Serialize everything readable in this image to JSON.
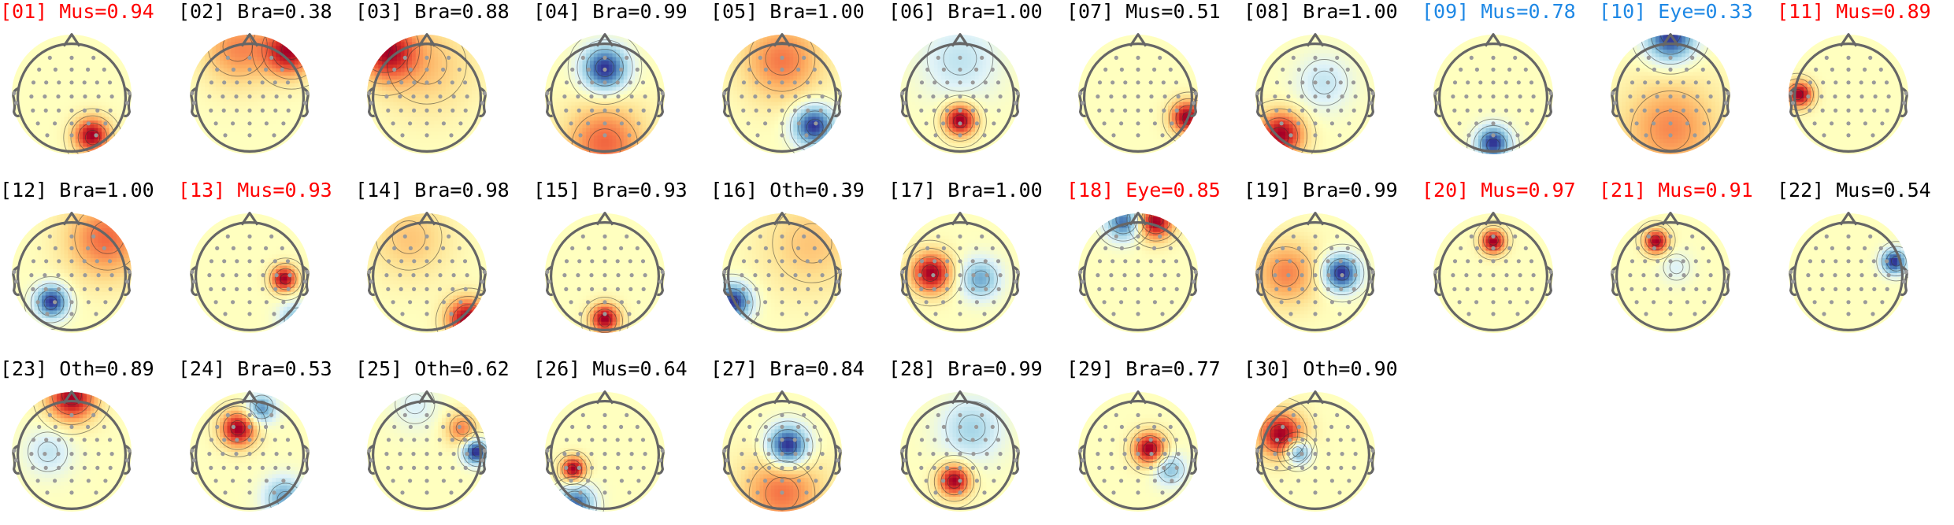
{
  "colors": {
    "normal_label": "#000000",
    "rejected_label": "#ff0000",
    "alternate_label": "#1e88e5",
    "head_outline": "#666666",
    "sensor": "#9a9a9a"
  },
  "chart_data": {
    "type": "topomap-grid",
    "columns": 11,
    "colormap": "RdYlBu_r",
    "components": [
      {
        "index": "01",
        "label": "Mus",
        "prob": "0.94",
        "status": "rejected",
        "blobs": [
          {
            "x": 0.35,
            "y": -0.72,
            "amp": 1.0,
            "s": 0.22
          }
        ]
      },
      {
        "index": "02",
        "label": "Bra",
        "prob": "0.38",
        "status": "normal",
        "blobs": [
          {
            "x": 0.7,
            "y": 0.75,
            "amp": 1.0,
            "s": 0.3
          },
          {
            "x": -0.2,
            "y": 0.8,
            "amp": 0.55,
            "s": 0.45
          }
        ]
      },
      {
        "index": "03",
        "label": "Bra",
        "prob": "0.88",
        "status": "normal",
        "blobs": [
          {
            "x": -0.7,
            "y": 0.75,
            "amp": 1.0,
            "s": 0.35
          },
          {
            "x": 0.0,
            "y": 0.5,
            "amp": 0.35,
            "s": 0.6
          }
        ]
      },
      {
        "index": "04",
        "label": "Bra",
        "prob": "0.99",
        "status": "normal",
        "blobs": [
          {
            "x": 0.0,
            "y": 0.45,
            "amp": -1.0,
            "s": 0.28
          },
          {
            "x": 0.0,
            "y": -0.85,
            "amp": 0.6,
            "s": 0.5
          }
        ]
      },
      {
        "index": "05",
        "label": "Bra",
        "prob": "1.00",
        "status": "normal",
        "blobs": [
          {
            "x": 0.55,
            "y": -0.55,
            "amp": -1.0,
            "s": 0.25
          },
          {
            "x": 0.0,
            "y": 0.6,
            "amp": 0.55,
            "s": 0.5
          }
        ]
      },
      {
        "index": "06",
        "label": "Bra",
        "prob": "1.00",
        "status": "normal",
        "blobs": [
          {
            "x": 0.0,
            "y": -0.45,
            "amp": 1.0,
            "s": 0.2
          },
          {
            "x": 0.0,
            "y": 0.6,
            "amp": -0.3,
            "s": 0.5
          }
        ]
      },
      {
        "index": "07",
        "label": "Mus",
        "prob": "0.51",
        "status": "normal",
        "blobs": [
          {
            "x": 0.85,
            "y": -0.4,
            "amp": 1.0,
            "s": 0.2
          }
        ]
      },
      {
        "index": "08",
        "label": "Bra",
        "prob": "1.00",
        "status": "normal",
        "blobs": [
          {
            "x": -0.6,
            "y": -0.7,
            "amp": 1.0,
            "s": 0.28
          },
          {
            "x": 0.15,
            "y": 0.2,
            "amp": -0.3,
            "s": 0.35
          }
        ]
      },
      {
        "index": "09",
        "label": "Mus",
        "prob": "0.78",
        "status": "alternate",
        "blobs": [
          {
            "x": 0.0,
            "y": -0.85,
            "amp": -1.0,
            "s": 0.2
          }
        ]
      },
      {
        "index": "10",
        "label": "Eye",
        "prob": "0.33",
        "status": "alternate",
        "blobs": [
          {
            "x": 0.0,
            "y": 1.0,
            "amp": -1.0,
            "s": 0.3
          },
          {
            "x": 0.0,
            "y": -0.6,
            "amp": 0.5,
            "s": 0.6
          }
        ]
      },
      {
        "index": "11",
        "label": "Mus",
        "prob": "0.89",
        "status": "rejected",
        "blobs": [
          {
            "x": -0.85,
            "y": 0.0,
            "amp": 1.0,
            "s": 0.16
          }
        ]
      },
      {
        "index": "12",
        "label": "Bra",
        "prob": "1.00",
        "status": "normal",
        "blobs": [
          {
            "x": -0.35,
            "y": -0.5,
            "amp": -1.0,
            "s": 0.2
          },
          {
            "x": 0.6,
            "y": 0.6,
            "amp": 0.6,
            "s": 0.5
          }
        ]
      },
      {
        "index": "13",
        "label": "Mus",
        "prob": "0.93",
        "status": "rejected",
        "blobs": [
          {
            "x": 0.6,
            "y": -0.1,
            "amp": 1.0,
            "s": 0.16
          },
          {
            "x": 0.8,
            "y": -0.8,
            "amp": -0.5,
            "s": 0.2
          }
        ]
      },
      {
        "index": "14",
        "label": "Bra",
        "prob": "0.98",
        "status": "normal",
        "blobs": [
          {
            "x": 0.7,
            "y": -0.8,
            "amp": 1.0,
            "s": 0.25
          },
          {
            "x": -0.3,
            "y": 0.6,
            "amp": 0.3,
            "s": 0.5
          }
        ]
      },
      {
        "index": "15",
        "label": "Bra",
        "prob": "0.93",
        "status": "normal",
        "blobs": [
          {
            "x": 0.0,
            "y": -0.8,
            "amp": 1.0,
            "s": 0.18
          }
        ]
      },
      {
        "index": "16",
        "label": "Oth",
        "prob": "0.39",
        "status": "normal",
        "blobs": [
          {
            "x": -0.85,
            "y": -0.5,
            "amp": -1.0,
            "s": 0.22
          },
          {
            "x": 0.5,
            "y": 0.5,
            "amp": 0.3,
            "s": 0.6
          }
        ]
      },
      {
        "index": "17",
        "label": "Bra",
        "prob": "1.00",
        "status": "normal",
        "blobs": [
          {
            "x": -0.5,
            "y": 0.0,
            "amp": 1.0,
            "s": 0.25
          },
          {
            "x": 0.35,
            "y": -0.1,
            "amp": -0.6,
            "s": 0.25
          }
        ]
      },
      {
        "index": "18",
        "label": "Eye",
        "prob": "0.85",
        "status": "rejected",
        "blobs": [
          {
            "x": 0.3,
            "y": 0.9,
            "amp": 1.0,
            "s": 0.22
          },
          {
            "x": -0.25,
            "y": 0.9,
            "amp": -0.8,
            "s": 0.22
          }
        ]
      },
      {
        "index": "19",
        "label": "Bra",
        "prob": "0.99",
        "status": "normal",
        "blobs": [
          {
            "x": 0.45,
            "y": 0.0,
            "amp": -1.0,
            "s": 0.22
          },
          {
            "x": -0.5,
            "y": 0.0,
            "amp": 0.5,
            "s": 0.4
          }
        ]
      },
      {
        "index": "20",
        "label": "Mus",
        "prob": "0.97",
        "status": "rejected",
        "blobs": [
          {
            "x": 0.0,
            "y": 0.55,
            "amp": 1.0,
            "s": 0.15
          }
        ]
      },
      {
        "index": "21",
        "label": "Mus",
        "prob": "0.91",
        "status": "rejected",
        "blobs": [
          {
            "x": -0.25,
            "y": 0.55,
            "amp": 1.0,
            "s": 0.15
          },
          {
            "x": 0.1,
            "y": 0.1,
            "amp": -0.2,
            "s": 0.2
          }
        ]
      },
      {
        "index": "22",
        "label": "Mus",
        "prob": "0.54",
        "status": "normal",
        "blobs": [
          {
            "x": 0.8,
            "y": 0.2,
            "amp": -1.0,
            "s": 0.15
          }
        ]
      },
      {
        "index": "23",
        "label": "Oth",
        "prob": "0.89",
        "status": "normal",
        "blobs": [
          {
            "x": 0.0,
            "y": 0.95,
            "amp": 1.0,
            "s": 0.3
          },
          {
            "x": -0.4,
            "y": 0.0,
            "amp": -0.3,
            "s": 0.3
          }
        ]
      },
      {
        "index": "24",
        "label": "Bra",
        "prob": "0.53",
        "status": "normal",
        "blobs": [
          {
            "x": -0.2,
            "y": 0.4,
            "amp": 1.0,
            "s": 0.22
          },
          {
            "x": 0.2,
            "y": 0.75,
            "amp": -0.7,
            "s": 0.18
          },
          {
            "x": 0.6,
            "y": -0.8,
            "amp": -0.6,
            "s": 0.25
          }
        ]
      },
      {
        "index": "25",
        "label": "Oth",
        "prob": "0.62",
        "status": "normal",
        "blobs": [
          {
            "x": 0.85,
            "y": 0.0,
            "amp": -1.0,
            "s": 0.15
          },
          {
            "x": 0.6,
            "y": 0.4,
            "amp": 0.5,
            "s": 0.2
          },
          {
            "x": -0.2,
            "y": 0.8,
            "amp": -0.2,
            "s": 0.3
          }
        ]
      },
      {
        "index": "26",
        "label": "Mus",
        "prob": "0.64",
        "status": "normal",
        "blobs": [
          {
            "x": -0.55,
            "y": -0.3,
            "amp": 1.0,
            "s": 0.15
          },
          {
            "x": -0.5,
            "y": -0.9,
            "amp": -0.8,
            "s": 0.22
          }
        ]
      },
      {
        "index": "27",
        "label": "Bra",
        "prob": "0.84",
        "status": "normal",
        "blobs": [
          {
            "x": 0.1,
            "y": 0.1,
            "amp": -1.0,
            "s": 0.25
          },
          {
            "x": 0.0,
            "y": -0.7,
            "amp": 0.5,
            "s": 0.5
          }
        ]
      },
      {
        "index": "28",
        "label": "Bra",
        "prob": "0.99",
        "status": "normal",
        "blobs": [
          {
            "x": -0.1,
            "y": -0.5,
            "amp": 1.0,
            "s": 0.2
          },
          {
            "x": 0.2,
            "y": 0.4,
            "amp": -0.4,
            "s": 0.4
          }
        ]
      },
      {
        "index": "29",
        "label": "Bra",
        "prob": "0.77",
        "status": "normal",
        "blobs": [
          {
            "x": 0.2,
            "y": 0.05,
            "amp": 1.0,
            "s": 0.2
          },
          {
            "x": 0.55,
            "y": -0.3,
            "amp": -0.5,
            "s": 0.2
          }
        ]
      },
      {
        "index": "30",
        "label": "Oth",
        "prob": "0.90",
        "status": "normal",
        "blobs": [
          {
            "x": -0.6,
            "y": 0.3,
            "amp": 1.0,
            "s": 0.28
          },
          {
            "x": -0.3,
            "y": 0.0,
            "amp": -0.8,
            "s": 0.15
          }
        ]
      }
    ]
  }
}
